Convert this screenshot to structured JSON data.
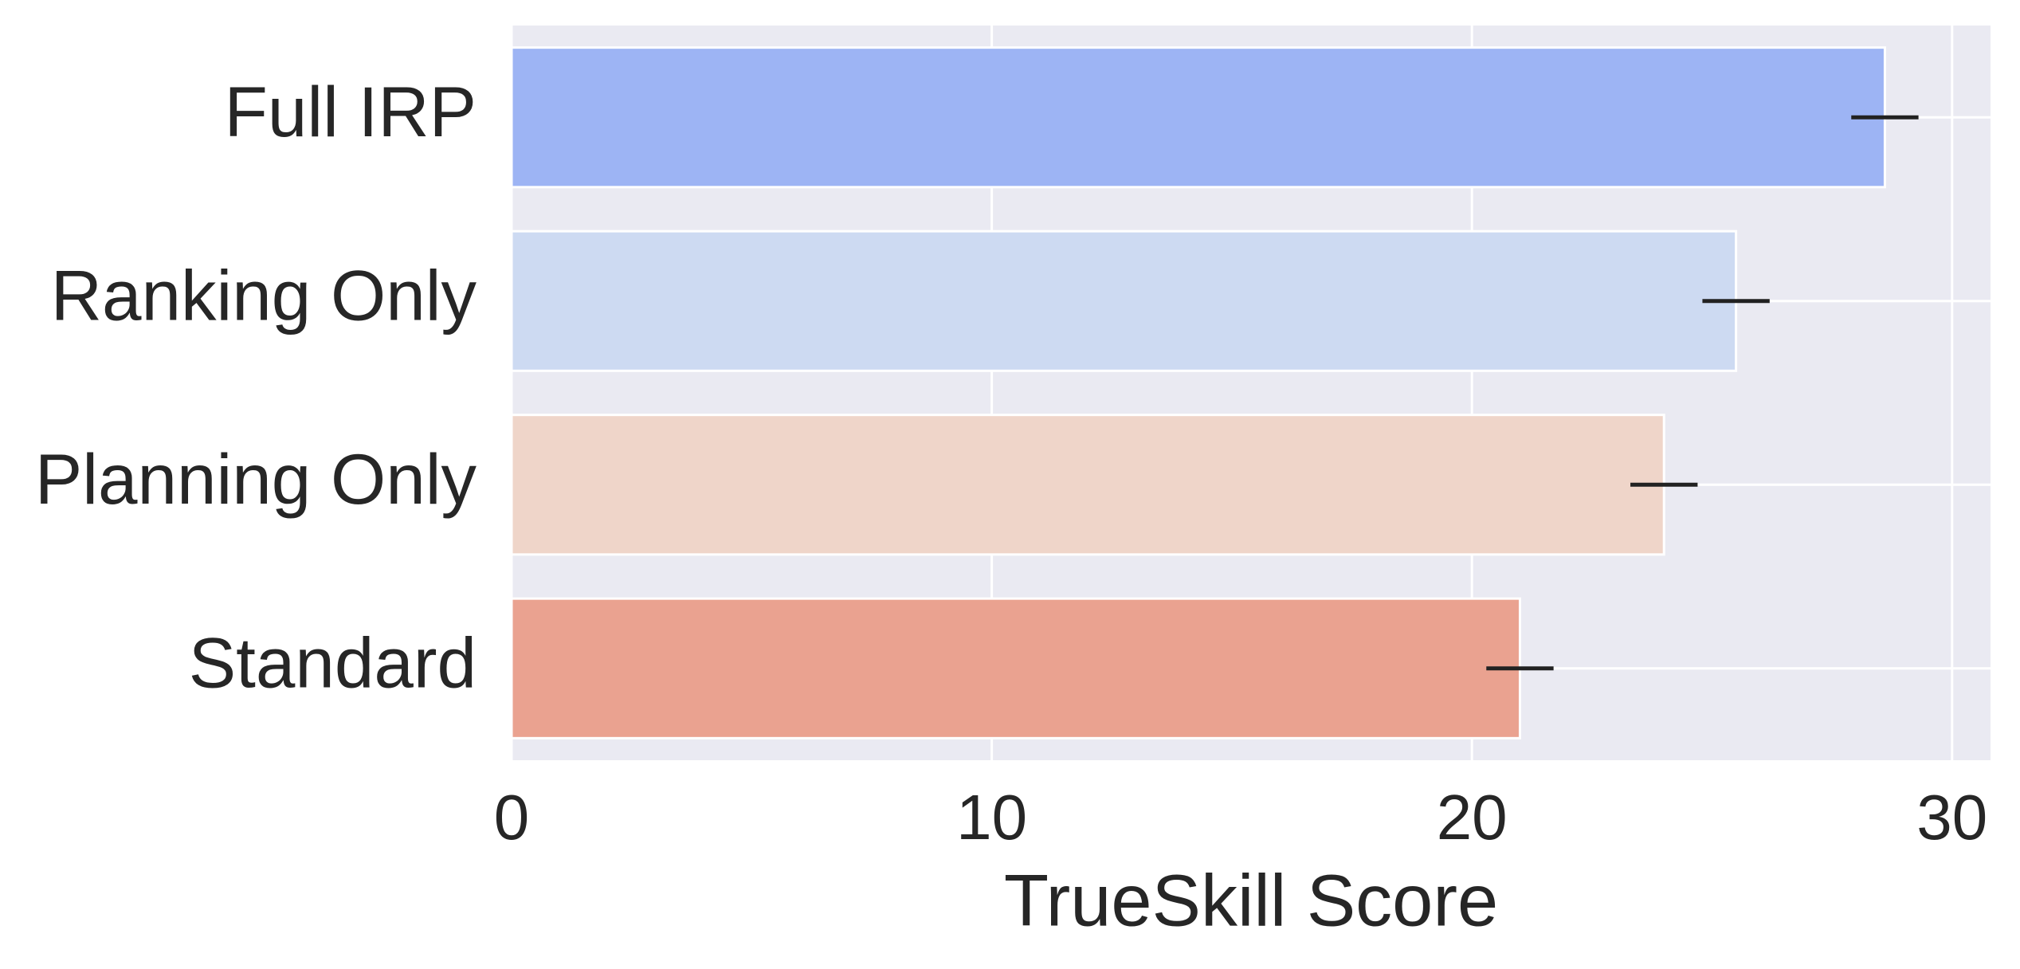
{
  "chart_data": {
    "type": "barh",
    "categories": [
      "Full IRP",
      "Ranking Only",
      "Planning Only",
      "Standard"
    ],
    "values": [
      28.6,
      25.5,
      24.0,
      21.0
    ],
    "errors": [
      0.7,
      0.7,
      0.7,
      0.7
    ],
    "colors": [
      "#9db4f4",
      "#cddaf2",
      "#efd5c9",
      "#eaa290"
    ],
    "error_color": "#222222",
    "xlabel": "TrueSkill Score",
    "xlim": [
      0,
      30.8
    ],
    "xticks": [
      0,
      10,
      20,
      30
    ],
    "grid": true,
    "background": "#eaeaf2"
  }
}
